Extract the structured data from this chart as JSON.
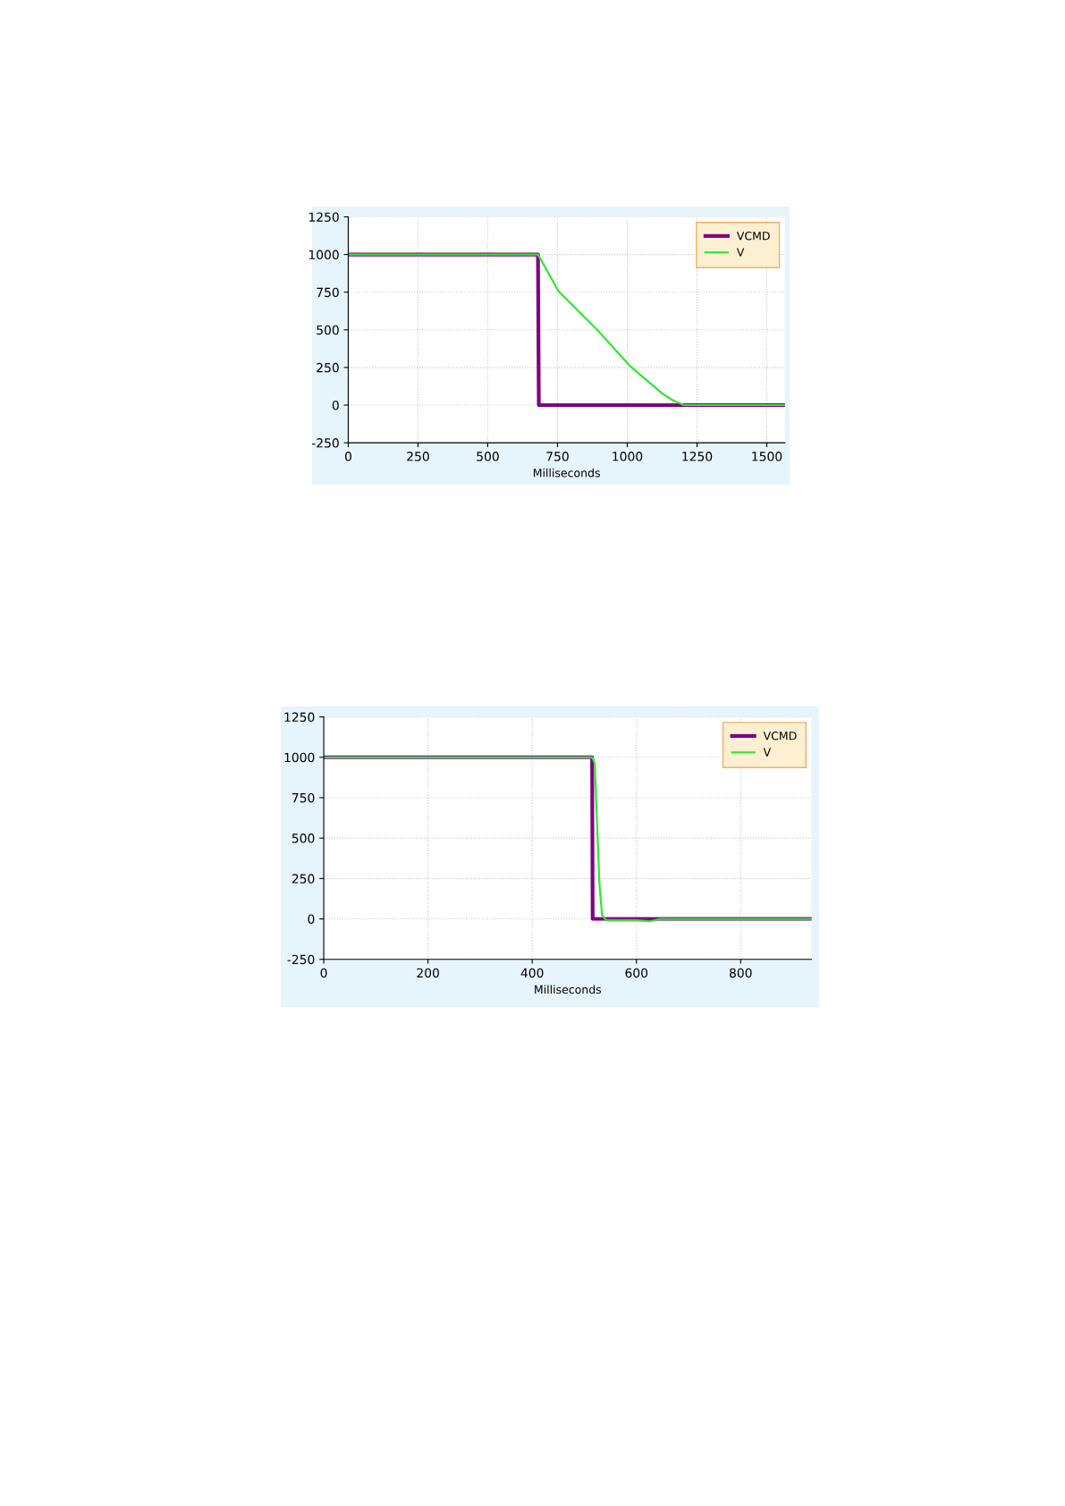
{
  "chart_data": [
    {
      "type": "line",
      "xlabel": "Milliseconds",
      "xlim": [
        0,
        1565
      ],
      "ylim": [
        -250,
        1250
      ],
      "xticks": [
        0,
        250,
        500,
        750,
        1000,
        1250,
        1500
      ],
      "yticks": [
        -250,
        0,
        250,
        500,
        750,
        1000,
        1250
      ],
      "grid": true,
      "legend": "top right",
      "series": [
        {
          "name": "VCMD",
          "color": "#800080",
          "x": [
            0,
            680,
            683,
            1565
          ],
          "values": [
            1000,
            1000,
            0,
            0
          ]
        },
        {
          "name": "V",
          "color": "#33e633",
          "x": [
            0,
            680,
            754,
            889,
            1012,
            1124,
            1164,
            1203,
            1565
          ],
          "values": [
            1000,
            1000,
            756,
            506,
            256,
            79,
            31,
            0,
            0
          ]
        }
      ]
    },
    {
      "type": "line",
      "xlabel": "Milliseconds",
      "xlim": [
        0,
        936
      ],
      "ylim": [
        -250,
        1250
      ],
      "xticks": [
        0,
        200,
        400,
        600,
        800
      ],
      "yticks": [
        -250,
        0,
        250,
        500,
        750,
        1000,
        1250
      ],
      "grid": true,
      "legend": "top right",
      "series": [
        {
          "name": "VCMD",
          "color": "#800080",
          "x": [
            0,
            515,
            516,
            936
          ],
          "values": [
            1000,
            1000,
            0,
            0
          ]
        },
        {
          "name": "V",
          "color": "#33e633",
          "x": [
            0,
            515,
            520,
            524,
            529,
            534,
            542,
            599,
            626,
            646,
            936
          ],
          "values": [
            1000,
            1000,
            963,
            629,
            218,
            24,
            -9,
            -9,
            -15,
            0,
            0
          ]
        }
      ]
    }
  ]
}
